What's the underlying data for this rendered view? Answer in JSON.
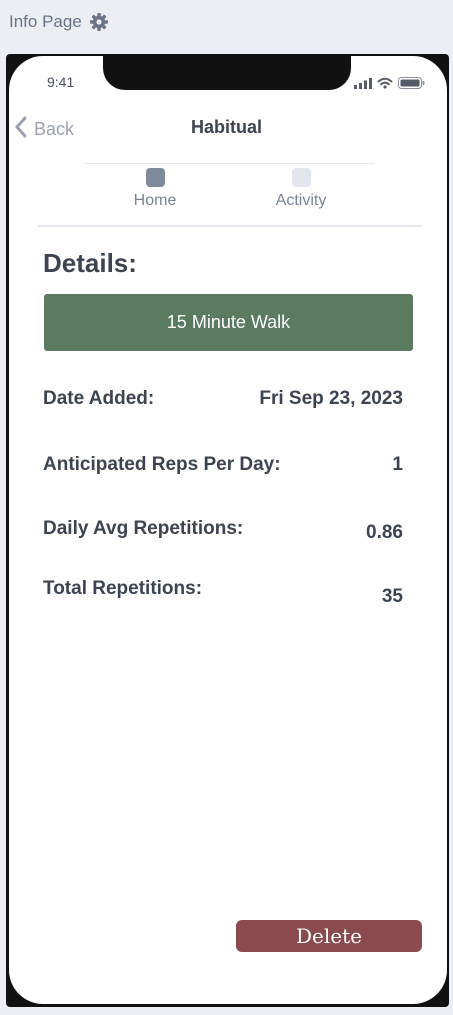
{
  "page": {
    "title": "Info Page",
    "title_icon": "gear-icon"
  },
  "status_bar": {
    "time": "9:41"
  },
  "nav": {
    "back_label": "Back",
    "title": "Habitual"
  },
  "tabs": [
    {
      "label": "Home",
      "active": true
    },
    {
      "label": "Activity",
      "active": false
    }
  ],
  "details": {
    "heading": "Details:",
    "habit_name": "15 Minute Walk",
    "rows": [
      {
        "label": "Date Added:",
        "value": "Fri Sep 23, 2023"
      },
      {
        "label": "Anticipated Reps Per Day:",
        "value": "1"
      },
      {
        "label": "Daily Avg Repetitions:",
        "value": "0.86"
      },
      {
        "label": "Total Repetitions:",
        "value": "35"
      }
    ]
  },
  "actions": {
    "delete_label": "Delete"
  },
  "colors": {
    "habit_bar": "#5a7b60",
    "delete_button": "#8a4b4e",
    "text": "#3d4451",
    "muted": "#9aa2b1"
  }
}
